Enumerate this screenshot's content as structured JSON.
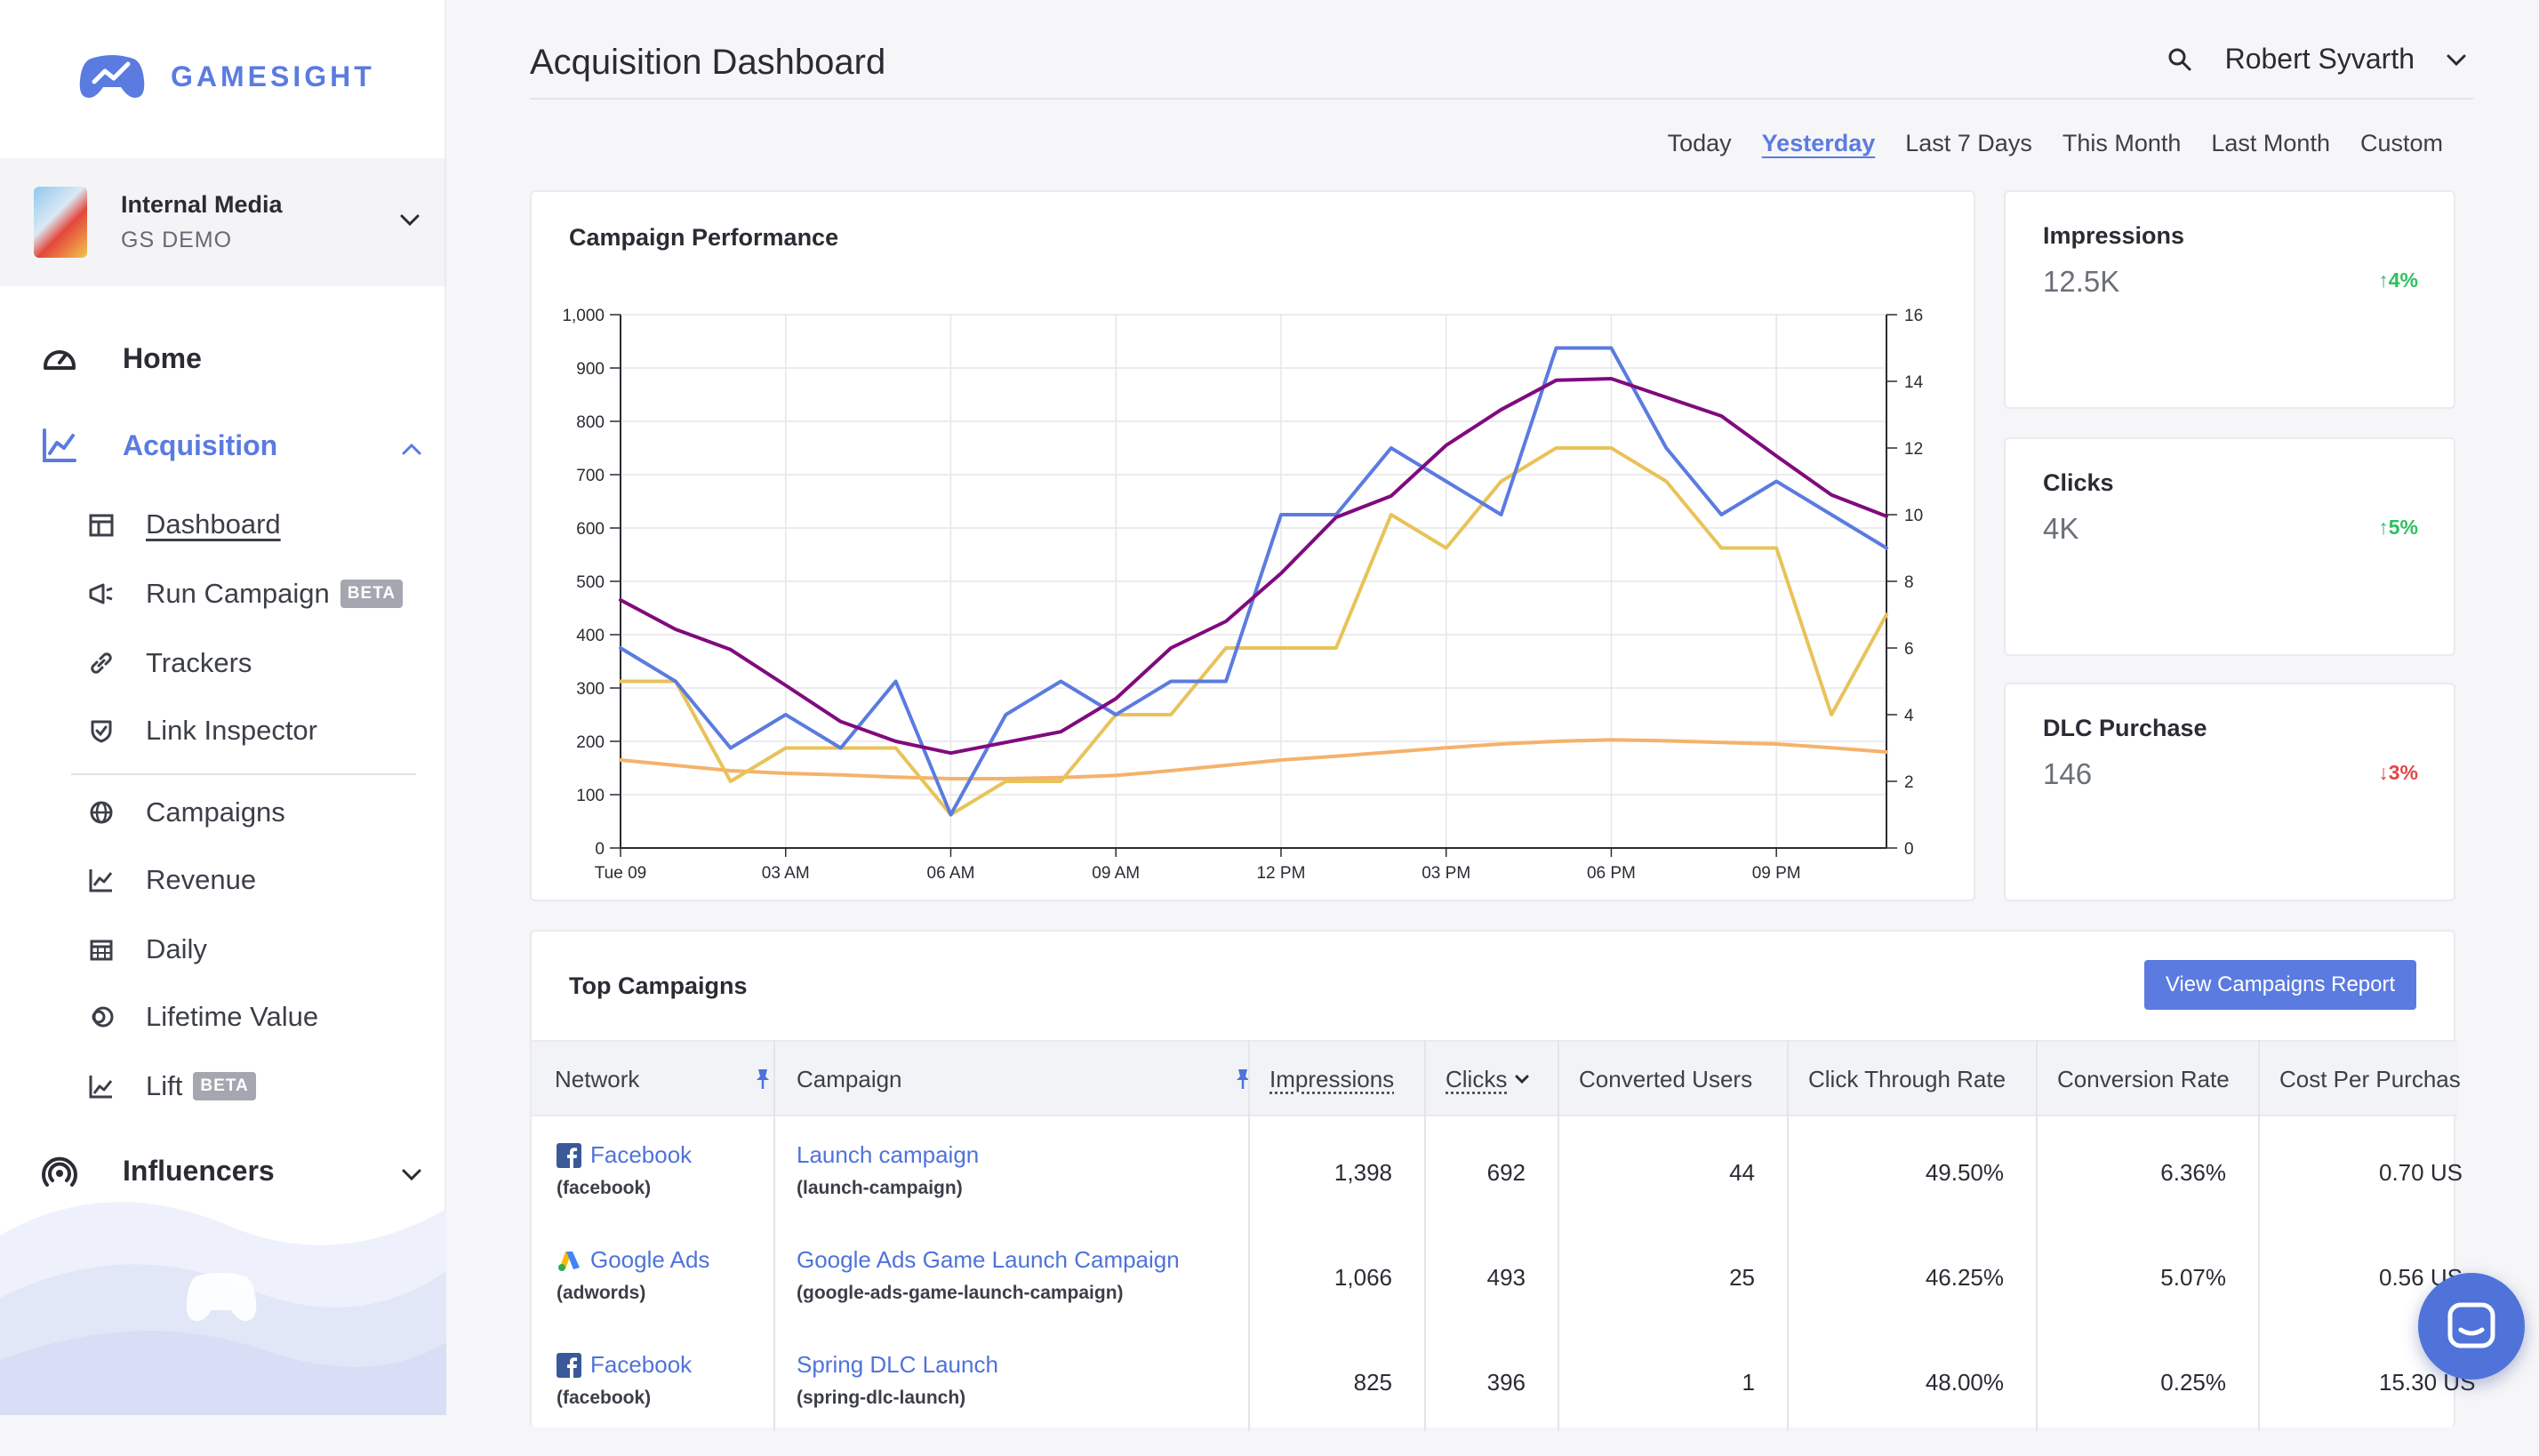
{
  "brand": {
    "name": "GAMESIGHT"
  },
  "org": {
    "name": "Internal Media",
    "sub": "GS DEMO"
  },
  "nav": {
    "home": "Home",
    "acquisition": "Acquisition",
    "sub_items": [
      {
        "label": "Dashboard",
        "icon": "dashboard-icon"
      },
      {
        "label": "Run Campaign",
        "badge": "BETA",
        "icon": "megaphone-icon"
      },
      {
        "label": "Trackers",
        "icon": "link-icon"
      },
      {
        "label": "Link Inspector",
        "icon": "shield-check-icon"
      },
      {
        "label": "Campaigns",
        "icon": "globe-icon"
      },
      {
        "label": "Revenue",
        "icon": "revenue-chart-icon"
      },
      {
        "label": "Daily",
        "icon": "calendar-icon"
      },
      {
        "label": "Lifetime Value",
        "icon": "coins-icon"
      },
      {
        "label": "Lift",
        "badge": "BETA",
        "icon": "lift-chart-icon"
      }
    ],
    "influencers": "Influencers"
  },
  "header": {
    "title": "Acquisition Dashboard",
    "user": "Robert Syvarth"
  },
  "range_tabs": [
    "Today",
    "Yesterday",
    "Last 7 Days",
    "This Month",
    "Last Month",
    "Custom"
  ],
  "range_selected": "Yesterday",
  "chart_data": {
    "type": "line",
    "title": "Campaign Performance",
    "x_tick_labels": [
      "Tue 09",
      "03 AM",
      "06 AM",
      "09 AM",
      "12 PM",
      "03 PM",
      "06 PM",
      "09 PM"
    ],
    "x_hours": [
      0,
      3,
      6,
      9,
      12,
      15,
      18,
      21
    ],
    "x": [
      0,
      1,
      2,
      3,
      4,
      5,
      6,
      7,
      8,
      9,
      10,
      11,
      12,
      13,
      14,
      15,
      16,
      17,
      18,
      19,
      20,
      21,
      22,
      23
    ],
    "y_left_ticks": [
      "0",
      "100",
      "200",
      "300",
      "400",
      "500",
      "600",
      "700",
      "800",
      "900",
      "1,000"
    ],
    "y_right_ticks": [
      "0",
      "2",
      "4",
      "6",
      "8",
      "10",
      "12",
      "14",
      "16"
    ],
    "ylim_left": [
      0,
      1000
    ],
    "ylim_right": [
      0,
      16
    ],
    "grid": true,
    "series": [
      {
        "color": "#800a7e",
        "axis": "left",
        "values": [
          465,
          410,
          372,
          305,
          237,
          200,
          178,
          198,
          218,
          280,
          375,
          425,
          515,
          620,
          660,
          755,
          822,
          877,
          880,
          845,
          810,
          735,
          662,
          622
        ]
      },
      {
        "color": "#5b7be0",
        "axis": "right",
        "values": [
          6.0,
          5.0,
          3.0,
          4.0,
          3.0,
          5.0,
          1.0,
          4.0,
          5.0,
          4.0,
          5.0,
          5.0,
          10.0,
          10.0,
          12.0,
          11.0,
          10.0,
          15.0,
          15.0,
          12.0,
          10.0,
          11.0,
          10.0,
          9.0
        ]
      },
      {
        "color": "#e8c35a",
        "axis": "right",
        "values": [
          5.0,
          5.0,
          2.0,
          3.0,
          3.0,
          3.0,
          1.0,
          2.0,
          2.0,
          4.0,
          4.0,
          6.0,
          6.0,
          6.0,
          10.0,
          9.0,
          11.0,
          12.0,
          12.0,
          11.0,
          9.0,
          9.0,
          4.0,
          7.0
        ]
      },
      {
        "color": "#f5b26b",
        "axis": "left",
        "values": [
          165,
          155,
          145,
          140,
          137,
          133,
          130,
          130,
          132,
          136,
          145,
          155,
          165,
          172,
          180,
          188,
          195,
          200,
          203,
          201,
          198,
          195,
          188,
          180
        ]
      }
    ]
  },
  "metrics": [
    {
      "title": "Impressions",
      "value": "12.5K",
      "delta": "4%",
      "direction": "up"
    },
    {
      "title": "Clicks",
      "value": "4K",
      "delta": "5%",
      "direction": "up"
    },
    {
      "title": "DLC Purchase",
      "value": "146",
      "delta": "3%",
      "direction": "down"
    }
  ],
  "table": {
    "title": "Top Campaigns",
    "button": "View Campaigns Report",
    "columns": [
      "Network",
      "Campaign",
      "Impressions",
      "Clicks",
      "Converted Users",
      "Click Through Rate",
      "Conversion Rate",
      "Cost Per Purchas"
    ],
    "rows": [
      {
        "network": "Facebook",
        "network_code": "(facebook)",
        "network_icon": "facebook-icon",
        "campaign": "Launch campaign",
        "campaign_code": "(launch-campaign)",
        "impressions": "1,398",
        "clicks": "692",
        "converted": "44",
        "ctr": "49.50%",
        "cr": "6.36%",
        "cpp": "0.70 US"
      },
      {
        "network": "Google Ads",
        "network_code": "(adwords)",
        "network_icon": "google-ads-icon",
        "campaign": "Google Ads Game Launch Campaign",
        "campaign_code": "(google-ads-game-launch-campaign)",
        "impressions": "1,066",
        "clicks": "493",
        "converted": "25",
        "ctr": "46.25%",
        "cr": "5.07%",
        "cpp": "0.56 US"
      },
      {
        "network": "Facebook",
        "network_code": "(facebook)",
        "network_icon": "facebook-icon",
        "campaign": "Spring DLC Launch",
        "campaign_code": "(spring-dlc-launch)",
        "impressions": "825",
        "clicks": "396",
        "converted": "1",
        "ctr": "48.00%",
        "cr": "0.25%",
        "cpp": "15.30 US"
      }
    ]
  },
  "colors": {
    "accent": "#5b7be0",
    "up": "#2fbf61",
    "down": "#e14848"
  }
}
